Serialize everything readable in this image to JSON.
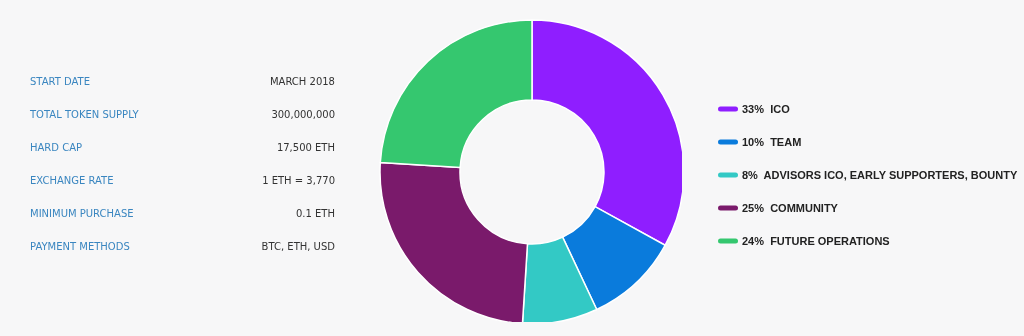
{
  "chart_data": [
    {
      "type": "other",
      "annotations": [
        "START DATE",
        "MARCH 2018",
        "TOTAL TOKEN SUPPLY",
        "300,000,000",
        "HARD CAP",
        "17,500 ETH",
        "EXCHANGE RATE",
        "1 ETH = 3,770",
        "MINIMUM PURCHASE",
        "0.1 ETH",
        "PAYMENT METHODS",
        "BTC, ETH, USD"
      ]
    },
    {
      "type": "donut",
      "categories": [
        "ICO",
        "TEAM",
        "ADVISORS ICO, EARLY SUPPORTERS, BOUNTY",
        "COMMUNITY",
        "FUTURE OPERATIONS"
      ],
      "values": [
        33,
        10,
        8,
        25,
        24
      ],
      "value_labels": [
        "33%",
        "10%",
        "8%",
        "25%",
        "24%"
      ],
      "colors": [
        "#8f1eff",
        "#0a7bdc",
        "#33c9c5",
        "#7a1a6b",
        "#35c76f"
      ],
      "legend": "right"
    }
  ]
}
